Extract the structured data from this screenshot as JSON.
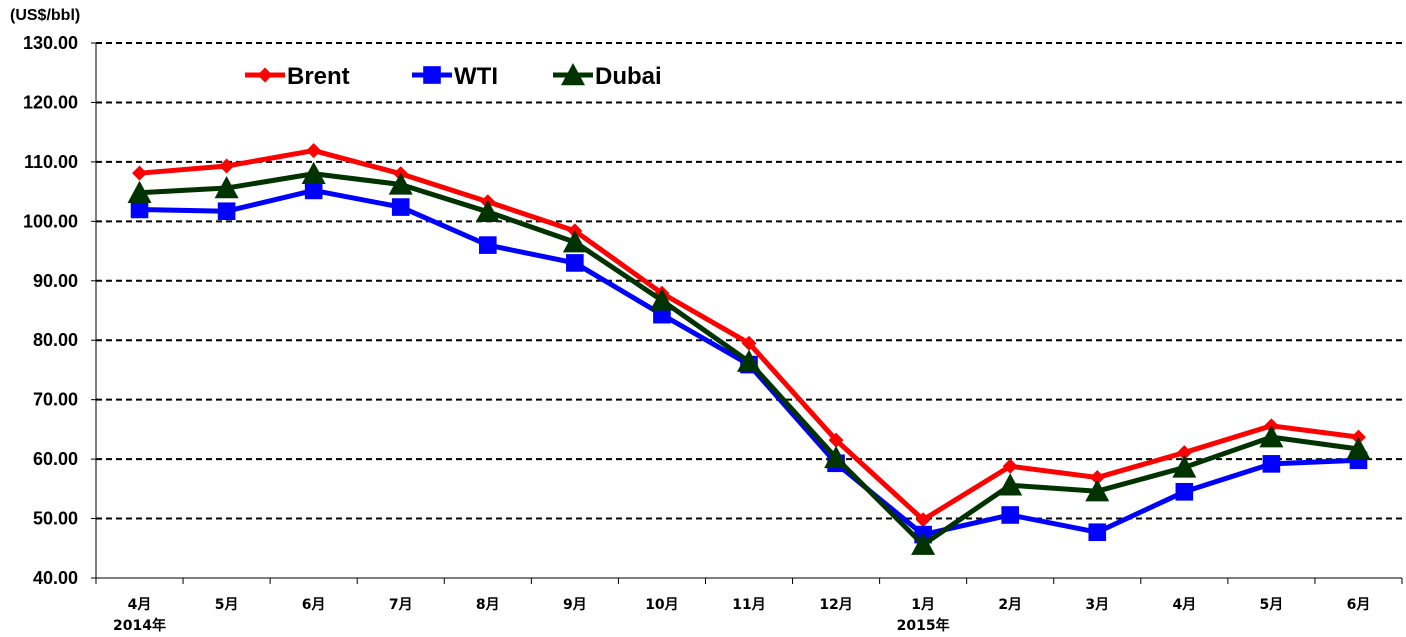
{
  "chart_data": {
    "type": "line",
    "y_unit_label": "(US$/bbl)",
    "ylim": [
      40,
      130
    ],
    "y_ticks": [
      "40.00",
      "50.00",
      "60.00",
      "70.00",
      "80.00",
      "90.00",
      "100.00",
      "110.00",
      "120.00",
      "130.00"
    ],
    "categories": [
      "4月",
      "5月",
      "6月",
      "7月",
      "8月",
      "9月",
      "10月",
      "11月",
      "12月",
      "1月",
      "2月",
      "3月",
      "4月",
      "5月",
      "6月"
    ],
    "year_labels": [
      {
        "index": 0,
        "text": "2014年"
      },
      {
        "index": 9,
        "text": "2015年"
      }
    ],
    "grid": "horizontal dashed",
    "legend_position": "top-left",
    "series": [
      {
        "name": "Brent",
        "color": "#ff0000",
        "marker": "diamond",
        "values": [
          108.1,
          109.3,
          111.9,
          108.0,
          103.3,
          98.4,
          87.9,
          79.5,
          63.2,
          49.8,
          58.8,
          56.9,
          61.1,
          65.6,
          63.7
        ]
      },
      {
        "name": "WTI",
        "color": "#0000ff",
        "marker": "square",
        "values": [
          102.0,
          101.7,
          105.2,
          102.4,
          96.0,
          93.0,
          84.3,
          75.9,
          59.3,
          47.3,
          50.6,
          47.7,
          54.5,
          59.2,
          59.8
        ]
      },
      {
        "name": "Dubai",
        "color": "#003300",
        "marker": "triangle",
        "values": [
          104.8,
          105.6,
          108.0,
          106.2,
          101.6,
          96.5,
          86.7,
          76.4,
          60.2,
          45.6,
          55.6,
          54.6,
          58.6,
          63.7,
          61.7
        ]
      }
    ]
  }
}
